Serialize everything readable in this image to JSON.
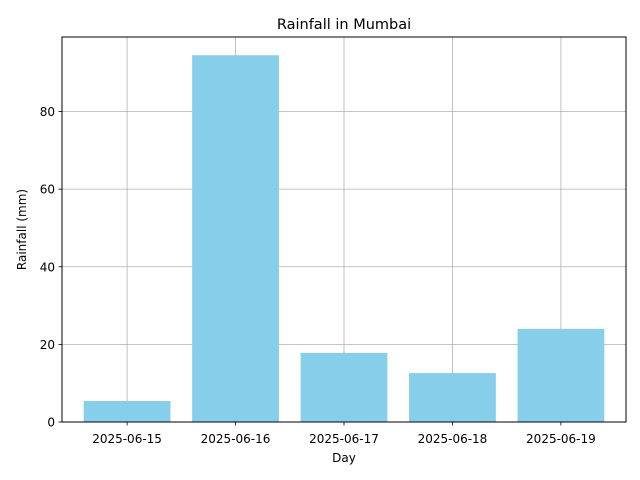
{
  "chart_data": {
    "type": "bar",
    "title": "Rainfall in Mumbai",
    "xlabel": "Day",
    "ylabel": "Rainfall (mm)",
    "categories": [
      "2025-06-15",
      "2025-06-16",
      "2025-06-17",
      "2025-06-18",
      "2025-06-19"
    ],
    "values": [
      5.4,
      94.5,
      17.8,
      12.6,
      24.0
    ],
    "ylim": [
      0,
      99.2
    ],
    "yticks": [
      0,
      20,
      40,
      60,
      80
    ],
    "grid": true,
    "bar_color": "#87ceeb",
    "grid_color": "#b0b0b0"
  }
}
